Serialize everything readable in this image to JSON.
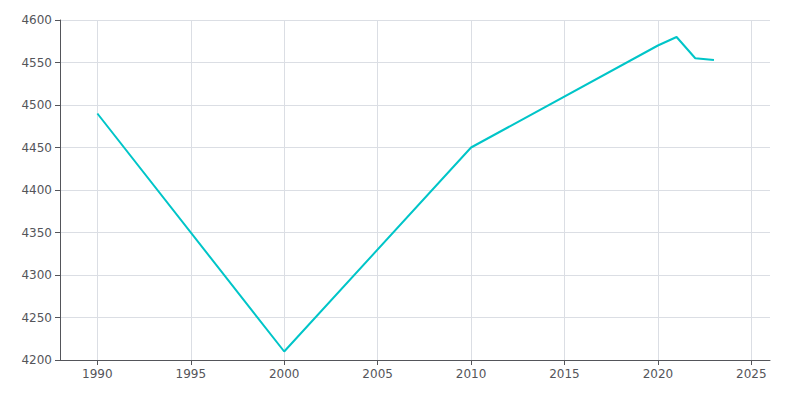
{
  "chart_data": {
    "type": "line",
    "x": [
      1990,
      2000,
      2010,
      2020,
      2021,
      2022,
      2023
    ],
    "values": [
      4490,
      4210,
      4450,
      4570,
      4580,
      4555,
      4553
    ],
    "color": "#00C5C8",
    "xlim": [
      1988,
      2026
    ],
    "ylim": [
      4200,
      4600
    ],
    "xticks": [
      1990,
      1995,
      2000,
      2005,
      2010,
      2015,
      2020,
      2025
    ],
    "yticks": [
      4200,
      4250,
      4300,
      4350,
      4400,
      4450,
      4500,
      4550,
      4600
    ],
    "grid": true
  }
}
